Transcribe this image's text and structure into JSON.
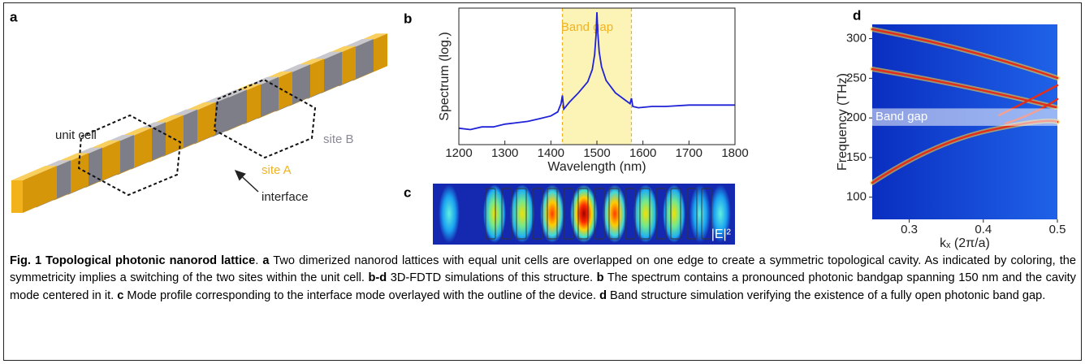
{
  "figure": {
    "panel_a": {
      "label": "a",
      "unit_cell": "unit cell",
      "site_a": "site A",
      "site_b": "site B",
      "interface": "interface"
    },
    "panel_b": {
      "label": "b",
      "type": "line",
      "xlabel": "Wavelength (nm)",
      "ylabel": "Spectrum (log.)",
      "x": [
        1200,
        1225,
        1250,
        1275,
        1300,
        1325,
        1350,
        1375,
        1400,
        1415,
        1422,
        1425,
        1428,
        1440,
        1460,
        1480,
        1490,
        1495,
        1498,
        1500,
        1502,
        1505,
        1510,
        1520,
        1540,
        1560,
        1572,
        1575,
        1578,
        1590,
        1620,
        1650,
        1700,
        1750,
        1800
      ],
      "values": [
        0.12,
        0.11,
        0.13,
        0.13,
        0.15,
        0.16,
        0.17,
        0.19,
        0.21,
        0.24,
        0.3,
        0.36,
        0.26,
        0.31,
        0.38,
        0.46,
        0.55,
        0.66,
        0.8,
        0.97,
        0.82,
        0.68,
        0.57,
        0.47,
        0.38,
        0.33,
        0.3,
        0.34,
        0.28,
        0.27,
        0.28,
        0.28,
        0.29,
        0.29,
        0.29
      ],
      "color": "#1f22d6",
      "xlim": [
        1200,
        1800
      ],
      "ylim": [
        0,
        1
      ],
      "xticks": [
        1200,
        1300,
        1400,
        1500,
        1600,
        1700,
        1800
      ],
      "band_gap": {
        "text": "Band gap",
        "range": [
          1425,
          1575
        ],
        "color": "#f0b323"
      }
    },
    "panel_c": {
      "label": "c",
      "field_label": "|E|²"
    },
    "panel_d": {
      "label": "d",
      "xlabel": "kₓ (2π/a)",
      "ylabel": "Frequency (THz)",
      "xlim": [
        0.25,
        0.5
      ],
      "ylim": [
        72,
        318
      ],
      "xticks": [
        0.3,
        0.4,
        0.5
      ],
      "yticks": [
        100,
        150,
        200,
        250,
        300
      ],
      "band_gap": {
        "text": "Band gap",
        "range": [
          190,
          212
        ]
      }
    },
    "caption": [
      {
        "text": "Fig. 1 Topological photonic nanorod lattice",
        "bold": true
      },
      {
        "text": ". ",
        "bold": false
      },
      {
        "text": "a",
        "bold": true
      },
      {
        "text": " Two dimerized nanorod lattices with equal unit cells are overlapped on one edge to create a symmetric topological cavity. As indicated by coloring, the symmetricity implies a switching of the two sites within the unit cell. ",
        "bold": false
      },
      {
        "text": "b-d",
        "bold": true
      },
      {
        "text": " 3D-FDTD simulations of this structure. ",
        "bold": false
      },
      {
        "text": "b",
        "bold": true
      },
      {
        "text": " The spectrum contains a pronounced photonic bandgap spanning 150 nm and the cavity mode centered in it. ",
        "bold": false
      },
      {
        "text": "c",
        "bold": true
      },
      {
        "text": " Mode profile corresponding to the interface mode overlayed with the outline of the device. ",
        "bold": false
      },
      {
        "text": "d",
        "bold": true
      },
      {
        "text": " Band structure simulation verifying the existence of a fully open photonic band gap.",
        "bold": false
      }
    ]
  }
}
